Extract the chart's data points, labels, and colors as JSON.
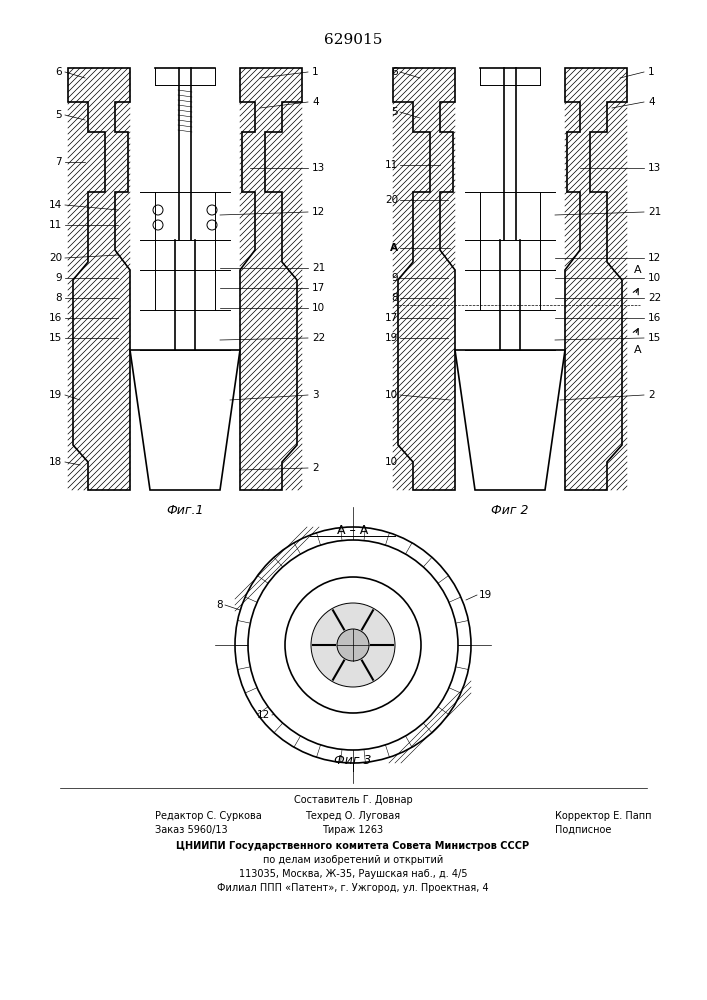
{
  "title": "629015",
  "title_fontsize": 11,
  "bg_color": "#ffffff",
  "line_color": "#000000",
  "hatch_color": "#000000",
  "fig1_label": "Фиг.1",
  "fig2_label": "Фиг 2",
  "fig3_label": "Фиг 3",
  "section_label": "А – А",
  "footer_line1": "Составитель Г. Довнар",
  "footer_line2_left": "Редактор С. Суркова",
  "footer_line2_mid": "Техред О. Луговая",
  "footer_line2_right": "Корректор Е. Папп",
  "footer_line3_left": "Заказ 5960/13",
  "footer_line3_mid": "Тираж 1263",
  "footer_line3_right": "Подписное",
  "footer_line4": "ЦНИИПИ Государственного комитета Совета Министров СССР",
  "footer_line5": "по делам изобретений и открытий",
  "footer_line6": "113035, Москва, Ж-35, Раушская наб., д. 4/5",
  "footer_line7": "Филиал ППП «Патент», г. Ужгород, ул. Проектная, 4"
}
